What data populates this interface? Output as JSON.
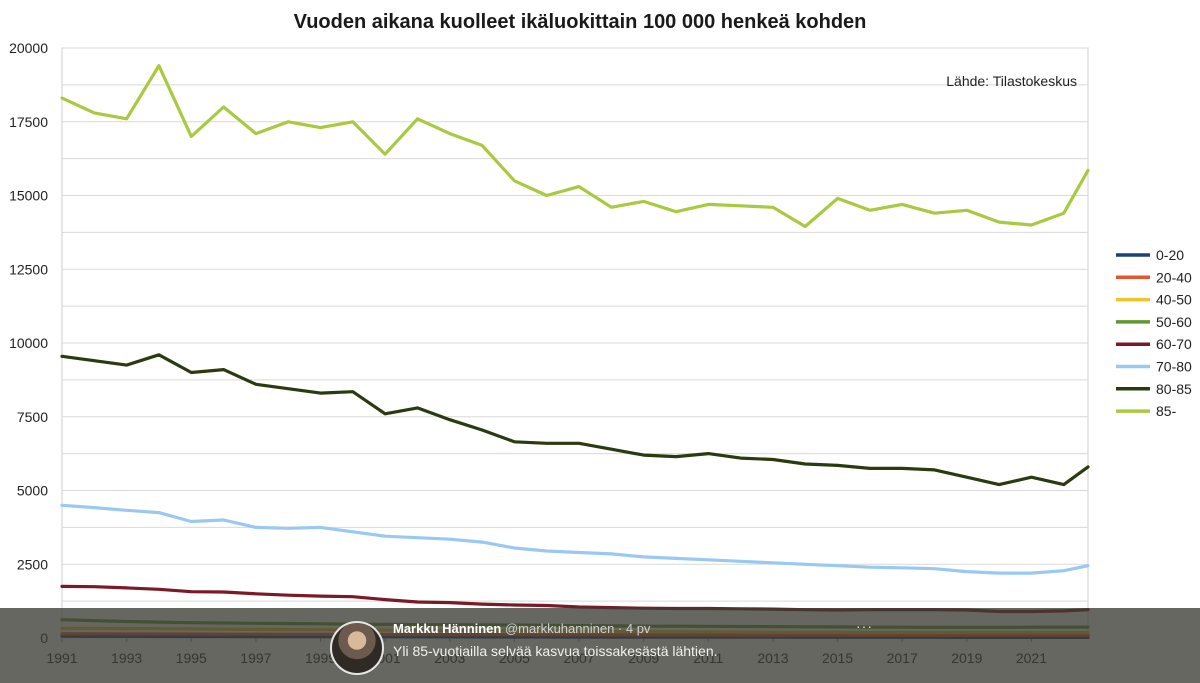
{
  "chart_data": {
    "type": "line",
    "title": "Vuoden aikana kuolleet ikäluokittain 100 000 henkeä kohden",
    "annotation": "Lähde: Tilastokeskus",
    "ylim": [
      0,
      20000
    ],
    "yticks": [
      0,
      2500,
      5000,
      7500,
      10000,
      12500,
      15000,
      17500,
      20000
    ],
    "xlim": [
      1991,
      2022.75
    ],
    "xticks": [
      "1991",
      "1993",
      "1995",
      "1997",
      "1999",
      "2001",
      "2003",
      "2005",
      "2007",
      "2009",
      "2011",
      "2013",
      "2015",
      "2017",
      "2019",
      "2021"
    ],
    "grid": true,
    "legend_position": "right",
    "x": [
      1991,
      1992,
      1993,
      1994,
      1995,
      1996,
      1997,
      1998,
      1999,
      2000,
      2001,
      2002,
      2003,
      2004,
      2005,
      2006,
      2007,
      2008,
      2009,
      2010,
      2011,
      2012,
      2013,
      2014,
      2015,
      2016,
      2017,
      2018,
      2019,
      2020,
      2021,
      2022,
      2022.75
    ],
    "series": [
      {
        "name": "0-20",
        "color": "#1f3f7a",
        "values": [
          60,
          58,
          56,
          54,
          52,
          50,
          48,
          46,
          44,
          42,
          40,
          38,
          36,
          35,
          34,
          33,
          32,
          31,
          30,
          29,
          28,
          27,
          26,
          25,
          24,
          24,
          23,
          23,
          22,
          22,
          22,
          22,
          22
        ]
      },
      {
        "name": "20-40",
        "color": "#e4572e",
        "values": [
          140,
          138,
          136,
          134,
          132,
          130,
          128,
          126,
          124,
          122,
          120,
          118,
          116,
          114,
          112,
          110,
          108,
          106,
          104,
          102,
          100,
          98,
          96,
          95,
          94,
          93,
          92,
          92,
          92,
          92,
          93,
          94,
          95
        ]
      },
      {
        "name": "40-50",
        "color": "#f2c42c",
        "values": [
          330,
          325,
          320,
          315,
          310,
          300,
          290,
          285,
          280,
          275,
          270,
          262,
          255,
          248,
          242,
          236,
          230,
          222,
          215,
          210,
          205,
          200,
          195,
          192,
          190,
          188,
          186,
          185,
          184,
          183,
          182,
          182,
          182
        ]
      },
      {
        "name": "50-60",
        "color": "#5f9733",
        "values": [
          620,
          590,
          560,
          540,
          520,
          510,
          500,
          490,
          480,
          470,
          460,
          455,
          450,
          445,
          440,
          430,
          420,
          410,
          400,
          400,
          395,
          390,
          385,
          380,
          375,
          370,
          365,
          360,
          360,
          360,
          365,
          370,
          370
        ]
      },
      {
        "name": "60-70",
        "color": "#7a1a26",
        "values": [
          1750,
          1740,
          1700,
          1650,
          1570,
          1560,
          1500,
          1450,
          1420,
          1400,
          1300,
          1220,
          1200,
          1150,
          1120,
          1100,
          1050,
          1030,
          1010,
          1000,
          1000,
          990,
          980,
          960,
          950,
          960,
          960,
          960,
          950,
          900,
          900,
          920,
          960
        ]
      },
      {
        "name": "70-80",
        "color": "#99c9f3",
        "values": [
          4500,
          4420,
          4330,
          4250,
          3950,
          4000,
          3750,
          3720,
          3750,
          3600,
          3450,
          3400,
          3350,
          3250,
          3050,
          2950,
          2900,
          2850,
          2750,
          2700,
          2650,
          2600,
          2550,
          2500,
          2450,
          2400,
          2380,
          2350,
          2250,
          2200,
          2200,
          2280,
          2450
        ]
      },
      {
        "name": "80-85",
        "color": "#2b3a0f",
        "values": [
          9550,
          9400,
          9250,
          9600,
          9000,
          9100,
          8600,
          8450,
          8300,
          8350,
          7600,
          7800,
          7400,
          7050,
          6650,
          6600,
          6600,
          6400,
          6200,
          6150,
          6250,
          6100,
          6050,
          5900,
          5850,
          5750,
          5750,
          5700,
          5450,
          5200,
          5450,
          5200,
          5800
        ]
      },
      {
        "name": "85-",
        "color": "#a9c93f",
        "values": [
          18300,
          17800,
          17600,
          19400,
          17000,
          18000,
          17100,
          17500,
          17300,
          17500,
          16400,
          17600,
          17100,
          16700,
          15500,
          15000,
          15300,
          14600,
          14800,
          14450,
          14700,
          14650,
          14600,
          13950,
          14900,
          14500,
          14700,
          14400,
          14500,
          14100,
          14000,
          14400,
          15850
        ]
      }
    ]
  },
  "tweet": {
    "name": "Markku Hänninen",
    "meta": "@markkuhanninen · 4 pv",
    "text": "Yli 85-vuotiailla selvää kasvua toissakesästä lähtien.",
    "more": "···"
  },
  "colors": {
    "overlay": "#3c3c34",
    "grid": "#d9d9d9"
  }
}
